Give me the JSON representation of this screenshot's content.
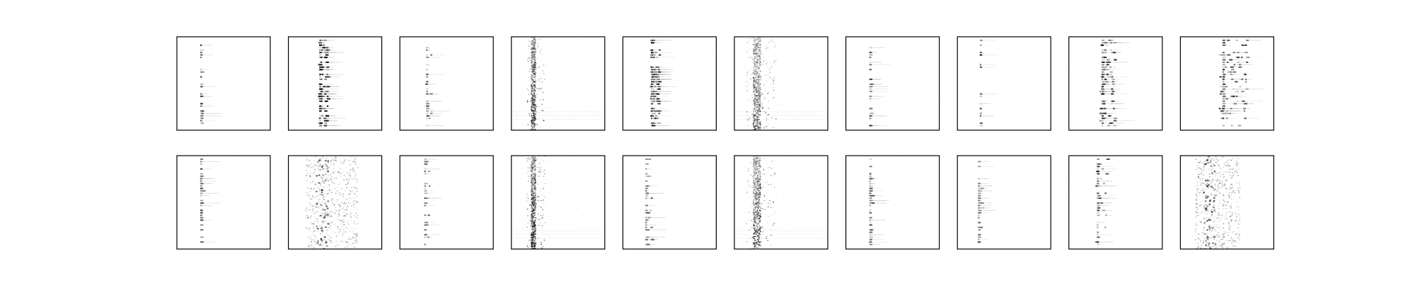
{
  "chart_data": {
    "type": "heatmap",
    "colormap": "gray_r",
    "grid": false,
    "axes_ticks": false,
    "rows": 2,
    "cols": 10,
    "panels": [
      {
        "row": 0,
        "col": 0,
        "pattern": "sparse-dots",
        "column_pos": 0.25,
        "column_width": 0.02,
        "intensity": 0.55,
        "density": 0.35,
        "seed": 11
      },
      {
        "row": 0,
        "col": 1,
        "pattern": "dense-dots",
        "column_pos": 0.33,
        "column_width": 0.1,
        "intensity": 0.75,
        "density": 0.8,
        "seed": 12
      },
      {
        "row": 0,
        "col": 2,
        "pattern": "sparse-dots",
        "column_pos": 0.28,
        "column_width": 0.06,
        "intensity": 0.55,
        "density": 0.5,
        "seed": 13
      },
      {
        "row": 0,
        "col": 3,
        "pattern": "smear",
        "column_pos": 0.22,
        "column_width": 0.05,
        "intensity": 0.7,
        "density": 0.9,
        "seed": 14
      },
      {
        "row": 0,
        "col": 4,
        "pattern": "dense-dots",
        "column_pos": 0.3,
        "column_width": 0.1,
        "intensity": 0.65,
        "density": 0.7,
        "seed": 15
      },
      {
        "row": 0,
        "col": 5,
        "pattern": "smear",
        "column_pos": 0.22,
        "column_width": 0.08,
        "intensity": 0.6,
        "density": 1.0,
        "seed": 16
      },
      {
        "row": 0,
        "col": 6,
        "pattern": "sparse-dots",
        "column_pos": 0.25,
        "column_width": 0.02,
        "intensity": 0.55,
        "density": 0.35,
        "seed": 17
      },
      {
        "row": 0,
        "col": 7,
        "pattern": "sparse-dots",
        "column_pos": 0.24,
        "column_width": 0.02,
        "intensity": 0.7,
        "density": 0.25,
        "seed": 18
      },
      {
        "row": 0,
        "col": 8,
        "pattern": "dense-dots",
        "column_pos": 0.35,
        "column_width": 0.16,
        "intensity": 0.7,
        "density": 0.7,
        "seed": 19
      },
      {
        "row": 0,
        "col": 9,
        "pattern": "dense-dots",
        "column_pos": 0.45,
        "column_width": 0.3,
        "intensity": 0.65,
        "density": 0.75,
        "seed": 20
      },
      {
        "row": 1,
        "col": 0,
        "pattern": "sparse-dots",
        "column_pos": 0.25,
        "column_width": 0.03,
        "intensity": 0.6,
        "density": 0.35,
        "seed": 21
      },
      {
        "row": 1,
        "col": 1,
        "pattern": "scatter-cloud",
        "column_pos": 0.35,
        "column_width": 0.35,
        "intensity": 0.55,
        "density": 0.9,
        "seed": 22
      },
      {
        "row": 1,
        "col": 2,
        "pattern": "sparse-dots",
        "column_pos": 0.26,
        "column_width": 0.06,
        "intensity": 0.5,
        "density": 0.4,
        "seed": 23
      },
      {
        "row": 1,
        "col": 3,
        "pattern": "smear",
        "column_pos": 0.22,
        "column_width": 0.05,
        "intensity": 0.8,
        "density": 1.0,
        "seed": 24
      },
      {
        "row": 1,
        "col": 4,
        "pattern": "sparse-dots",
        "column_pos": 0.24,
        "column_width": 0.08,
        "intensity": 0.5,
        "density": 0.5,
        "seed": 25
      },
      {
        "row": 1,
        "col": 5,
        "pattern": "smear",
        "column_pos": 0.22,
        "column_width": 0.08,
        "intensity": 0.7,
        "density": 1.0,
        "seed": 26
      },
      {
        "row": 1,
        "col": 6,
        "pattern": "sparse-dots",
        "column_pos": 0.25,
        "column_width": 0.03,
        "intensity": 0.55,
        "density": 0.4,
        "seed": 27
      },
      {
        "row": 1,
        "col": 7,
        "pattern": "sparse-dots",
        "column_pos": 0.22,
        "column_width": 0.06,
        "intensity": 0.5,
        "density": 0.45,
        "seed": 28
      },
      {
        "row": 1,
        "col": 8,
        "pattern": "sparse-dots",
        "column_pos": 0.3,
        "column_width": 0.12,
        "intensity": 0.6,
        "density": 0.5,
        "seed": 29
      },
      {
        "row": 1,
        "col": 9,
        "pattern": "scatter-cloud",
        "column_pos": 0.3,
        "column_width": 0.3,
        "intensity": 0.6,
        "density": 0.85,
        "seed": 30
      }
    ]
  }
}
